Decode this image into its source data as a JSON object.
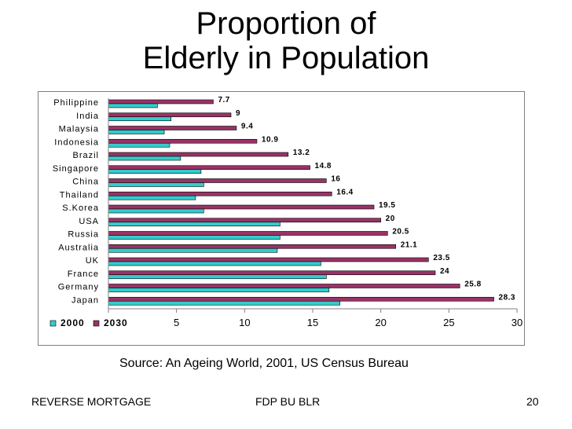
{
  "slide": {
    "title_line1": "Proportion of",
    "title_line2": "Elderly in Population",
    "source": "Source: An  Ageing World, 2001, US Census Bureau",
    "footer_left": "REVERSE MORTGAGE",
    "footer_center": "FDP BU BLR",
    "footer_right": "20"
  },
  "colors": {
    "series_2000": "#33cccc",
    "series_2030": "#993366",
    "axis": "#7f7f7f"
  },
  "chart_data": {
    "type": "bar",
    "orientation": "horizontal",
    "title": "",
    "xlabel": "",
    "ylabel": "",
    "xlim": [
      0,
      30
    ],
    "x_ticks": [
      5,
      10,
      15,
      20,
      25,
      30
    ],
    "grid": false,
    "legend": "bottom-left",
    "categories": [
      "Philippine",
      "India",
      "Malaysia",
      "Indonesia",
      "Brazil",
      "Singapore",
      "China",
      "Thailand",
      "S.Korea",
      "USA",
      "Russia",
      "Australia",
      "UK",
      "France",
      "Germany",
      "Japan"
    ],
    "series": [
      {
        "name": "2000",
        "values": [
          3.6,
          4.6,
          4.1,
          4.5,
          5.3,
          6.8,
          7.0,
          6.4,
          7.0,
          12.6,
          12.6,
          12.4,
          15.6,
          16.0,
          16.2,
          17.0
        ],
        "labels": []
      },
      {
        "name": "2030",
        "values": [
          7.7,
          9,
          9.4,
          10.9,
          13.2,
          14.8,
          16,
          16.4,
          19.5,
          20,
          20.5,
          21.1,
          23.5,
          24,
          25.8,
          28.3
        ],
        "labels": [
          "7.7",
          "9",
          "9.4",
          "10.9",
          "13.2",
          "14.8",
          "16",
          "16.4",
          "19.5",
          "20",
          "20.5",
          "21.1",
          "23.5",
          "24",
          "25.8",
          "28.3"
        ]
      }
    ]
  }
}
